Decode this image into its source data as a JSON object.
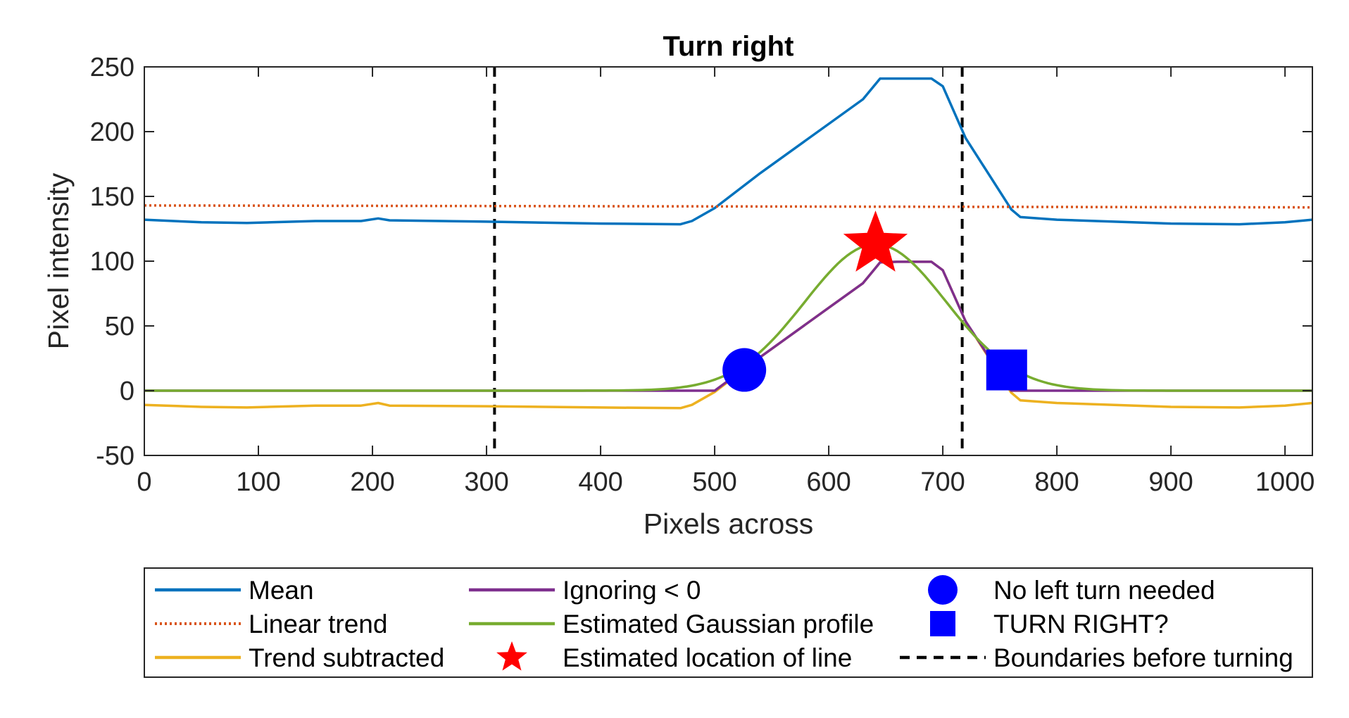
{
  "chart_data": {
    "type": "line",
    "title": "Turn right",
    "xlabel": "Pixels across",
    "ylabel": "Pixel intensity",
    "xlim": [
      0,
      1024
    ],
    "ylim": [
      -50,
      250
    ],
    "xticks": [
      0,
      100,
      200,
      300,
      400,
      500,
      600,
      700,
      800,
      900,
      1000
    ],
    "yticks": [
      -50,
      0,
      50,
      100,
      150,
      200,
      250
    ],
    "grid": false,
    "legend_position": "bottom",
    "series": [
      {
        "name": "Mean",
        "color": "#0072BD",
        "style": "solid",
        "points": [
          [
            0,
            132
          ],
          [
            50,
            130
          ],
          [
            90,
            129.5
          ],
          [
            150,
            131
          ],
          [
            190,
            131
          ],
          [
            205,
            133
          ],
          [
            215,
            131.5
          ],
          [
            300,
            130.5
          ],
          [
            400,
            129
          ],
          [
            470,
            128.5
          ],
          [
            480,
            131
          ],
          [
            500,
            141
          ],
          [
            540,
            168
          ],
          [
            600,
            206
          ],
          [
            630,
            225
          ],
          [
            645,
            241
          ],
          [
            660,
            241
          ],
          [
            690,
            241
          ],
          [
            700,
            235
          ],
          [
            720,
            195
          ],
          [
            760,
            140
          ],
          [
            768,
            134
          ],
          [
            800,
            132
          ],
          [
            900,
            129
          ],
          [
            960,
            128.5
          ],
          [
            1000,
            130
          ],
          [
            1024,
            132
          ]
        ]
      },
      {
        "name": "Linear trend",
        "color": "#D95319",
        "style": "dotted",
        "points": [
          [
            0,
            143
          ],
          [
            1024,
            141.5
          ]
        ]
      },
      {
        "name": "Trend subtracted",
        "color": "#EDB120",
        "style": "solid",
        "points": [
          [
            0,
            -11
          ],
          [
            50,
            -12.5
          ],
          [
            90,
            -13
          ],
          [
            150,
            -11.5
          ],
          [
            190,
            -11.5
          ],
          [
            205,
            -9.5
          ],
          [
            215,
            -11.5
          ],
          [
            300,
            -12
          ],
          [
            400,
            -13
          ],
          [
            470,
            -13.5
          ],
          [
            480,
            -11
          ],
          [
            500,
            -1
          ],
          [
            540,
            26
          ],
          [
            600,
            64
          ],
          [
            630,
            83
          ],
          [
            645,
            99
          ],
          [
            660,
            99.5
          ],
          [
            690,
            99.5
          ],
          [
            700,
            93
          ],
          [
            720,
            53.5
          ],
          [
            760,
            -1.5
          ],
          [
            768,
            -7.5
          ],
          [
            800,
            -9.5
          ],
          [
            900,
            -12.5
          ],
          [
            960,
            -13
          ],
          [
            1000,
            -11.5
          ],
          [
            1024,
            -9.5
          ]
        ]
      },
      {
        "name": "Ignoring < 0",
        "color": "#7E2F8E",
        "style": "solid",
        "points": [
          [
            0,
            0
          ],
          [
            470,
            0
          ],
          [
            480,
            0
          ],
          [
            500,
            0
          ],
          [
            540,
            26
          ],
          [
            600,
            64
          ],
          [
            630,
            83
          ],
          [
            645,
            99
          ],
          [
            660,
            99.5
          ],
          [
            690,
            99.5
          ],
          [
            700,
            93
          ],
          [
            720,
            53.5
          ],
          [
            760,
            0
          ],
          [
            768,
            0
          ],
          [
            1024,
            0
          ]
        ]
      },
      {
        "name": "Estimated Gaussian profile",
        "color": "#77AC30",
        "style": "solid",
        "gaussian": {
          "amplitude": 113,
          "center": 641,
          "sigma": 62
        },
        "points": [
          [
            0,
            0
          ],
          [
            400,
            0
          ],
          [
            480,
            4
          ],
          [
            520,
            17
          ],
          [
            560,
            46
          ],
          [
            600,
            90
          ],
          [
            641,
            113
          ],
          [
            680,
            93
          ],
          [
            720,
            50
          ],
          [
            760,
            15
          ],
          [
            800,
            3
          ],
          [
            850,
            0
          ],
          [
            1024,
            0
          ]
        ]
      }
    ],
    "markers": [
      {
        "name": "Estimated location of line",
        "shape": "star",
        "color": "#FF0000",
        "x": 641,
        "y": 113
      },
      {
        "name": "No left turn needed",
        "shape": "circle",
        "color": "#0000FF",
        "x": 526,
        "y": 16
      },
      {
        "name": "TURN RIGHT?",
        "shape": "square",
        "color": "#0000FF",
        "x": 756,
        "y": 16
      }
    ],
    "boundaries": {
      "name": "Boundaries before turning",
      "color": "#000000",
      "style": "dashed",
      "x": [
        307,
        717
      ]
    },
    "legend": [
      [
        "Mean",
        "Ignoring < 0",
        "No left turn needed"
      ],
      [
        "Linear trend",
        "Estimated Gaussian profile",
        "TURN RIGHT?"
      ],
      [
        "Trend subtracted",
        "Estimated location of line",
        "Boundaries before turning"
      ]
    ]
  }
}
